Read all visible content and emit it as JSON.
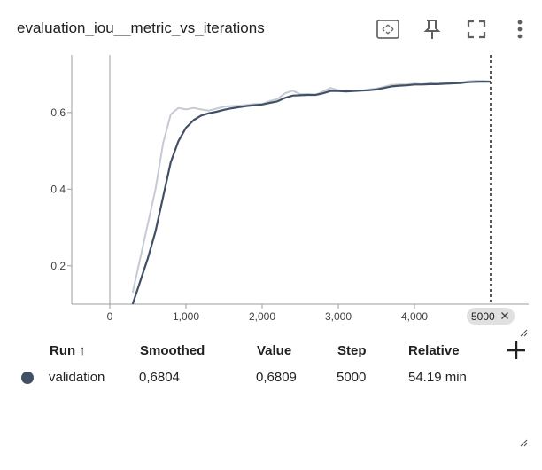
{
  "card": {
    "title": "evaluation_iou__metric_vs_iterations"
  },
  "toolbar": {
    "icons": [
      "fit-domain-icon",
      "pin-icon",
      "fullscreen-icon",
      "more-vert-icon"
    ]
  },
  "chart_data": {
    "type": "line",
    "title": "evaluation_iou__metric_vs_iterations",
    "xlabel": "",
    "ylabel": "",
    "xlim": [
      -500,
      5500
    ],
    "ylim": [
      0.1,
      0.75
    ],
    "x_ticks": [
      0,
      1000,
      2000,
      3000,
      4000
    ],
    "x_tick_labels": [
      "0",
      "1,000",
      "2,000",
      "3,000",
      "4,000"
    ],
    "y_ticks": [
      0.2,
      0.4,
      0.6
    ],
    "y_tick_labels": [
      "0.2",
      "0.4",
      "0.6"
    ],
    "grid": false,
    "hover_step_label": "5000",
    "hover_step": 5000,
    "series": [
      {
        "role": "raw",
        "color": "#c5cad3",
        "x": [
          300,
          400,
          500,
          600,
          700,
          800,
          900,
          1000,
          1100,
          1200,
          1300,
          1400,
          1500,
          1600,
          1700,
          1800,
          1900,
          2000,
          2100,
          2200,
          2300,
          2400,
          2500,
          2600,
          2700,
          2800,
          2900,
          3000,
          3100,
          3200,
          3300,
          3400,
          3500,
          3600,
          3700,
          3800,
          3900,
          4000,
          4100,
          4200,
          4300,
          4400,
          4500,
          4600,
          4700,
          4800,
          4900,
          5000
        ],
        "y": [
          0.13,
          0.22,
          0.31,
          0.4,
          0.52,
          0.595,
          0.612,
          0.608,
          0.612,
          0.608,
          0.605,
          0.61,
          0.615,
          0.617,
          0.618,
          0.62,
          0.622,
          0.622,
          0.63,
          0.635,
          0.65,
          0.657,
          0.648,
          0.648,
          0.646,
          0.655,
          0.664,
          0.658,
          0.656,
          0.657,
          0.657,
          0.66,
          0.662,
          0.667,
          0.672,
          0.673,
          0.673,
          0.675,
          0.674,
          0.676,
          0.675,
          0.677,
          0.677,
          0.678,
          0.681,
          0.683,
          0.682,
          0.6809
        ]
      },
      {
        "role": "smoothed",
        "name": "validation",
        "color": "#425066",
        "x": [
          300,
          400,
          500,
          600,
          700,
          800,
          900,
          1000,
          1100,
          1200,
          1300,
          1400,
          1500,
          1600,
          1700,
          1800,
          1900,
          2000,
          2100,
          2200,
          2300,
          2400,
          2500,
          2600,
          2700,
          2800,
          2900,
          3000,
          3100,
          3200,
          3300,
          3400,
          3500,
          3600,
          3700,
          3800,
          3900,
          4000,
          4100,
          4200,
          4300,
          4400,
          4500,
          4600,
          4700,
          4800,
          4900,
          5000
        ],
        "y": [
          0.1,
          0.16,
          0.22,
          0.29,
          0.38,
          0.47,
          0.525,
          0.56,
          0.58,
          0.592,
          0.598,
          0.602,
          0.607,
          0.611,
          0.614,
          0.617,
          0.619,
          0.621,
          0.625,
          0.629,
          0.638,
          0.644,
          0.645,
          0.646,
          0.646,
          0.65,
          0.656,
          0.656,
          0.655,
          0.656,
          0.657,
          0.658,
          0.66,
          0.664,
          0.668,
          0.67,
          0.671,
          0.673,
          0.673,
          0.674,
          0.674,
          0.675,
          0.676,
          0.677,
          0.679,
          0.68,
          0.6805,
          0.6804
        ]
      }
    ]
  },
  "table": {
    "headers": {
      "run": "Run ↑",
      "smoothed": "Smoothed",
      "value": "Value",
      "step": "Step",
      "relative": "Relative"
    },
    "row": {
      "run": "validation",
      "smoothed": "0,6804",
      "value": "0,6809",
      "step": "5000",
      "relative": "54.19 min",
      "color": "#425066"
    }
  }
}
